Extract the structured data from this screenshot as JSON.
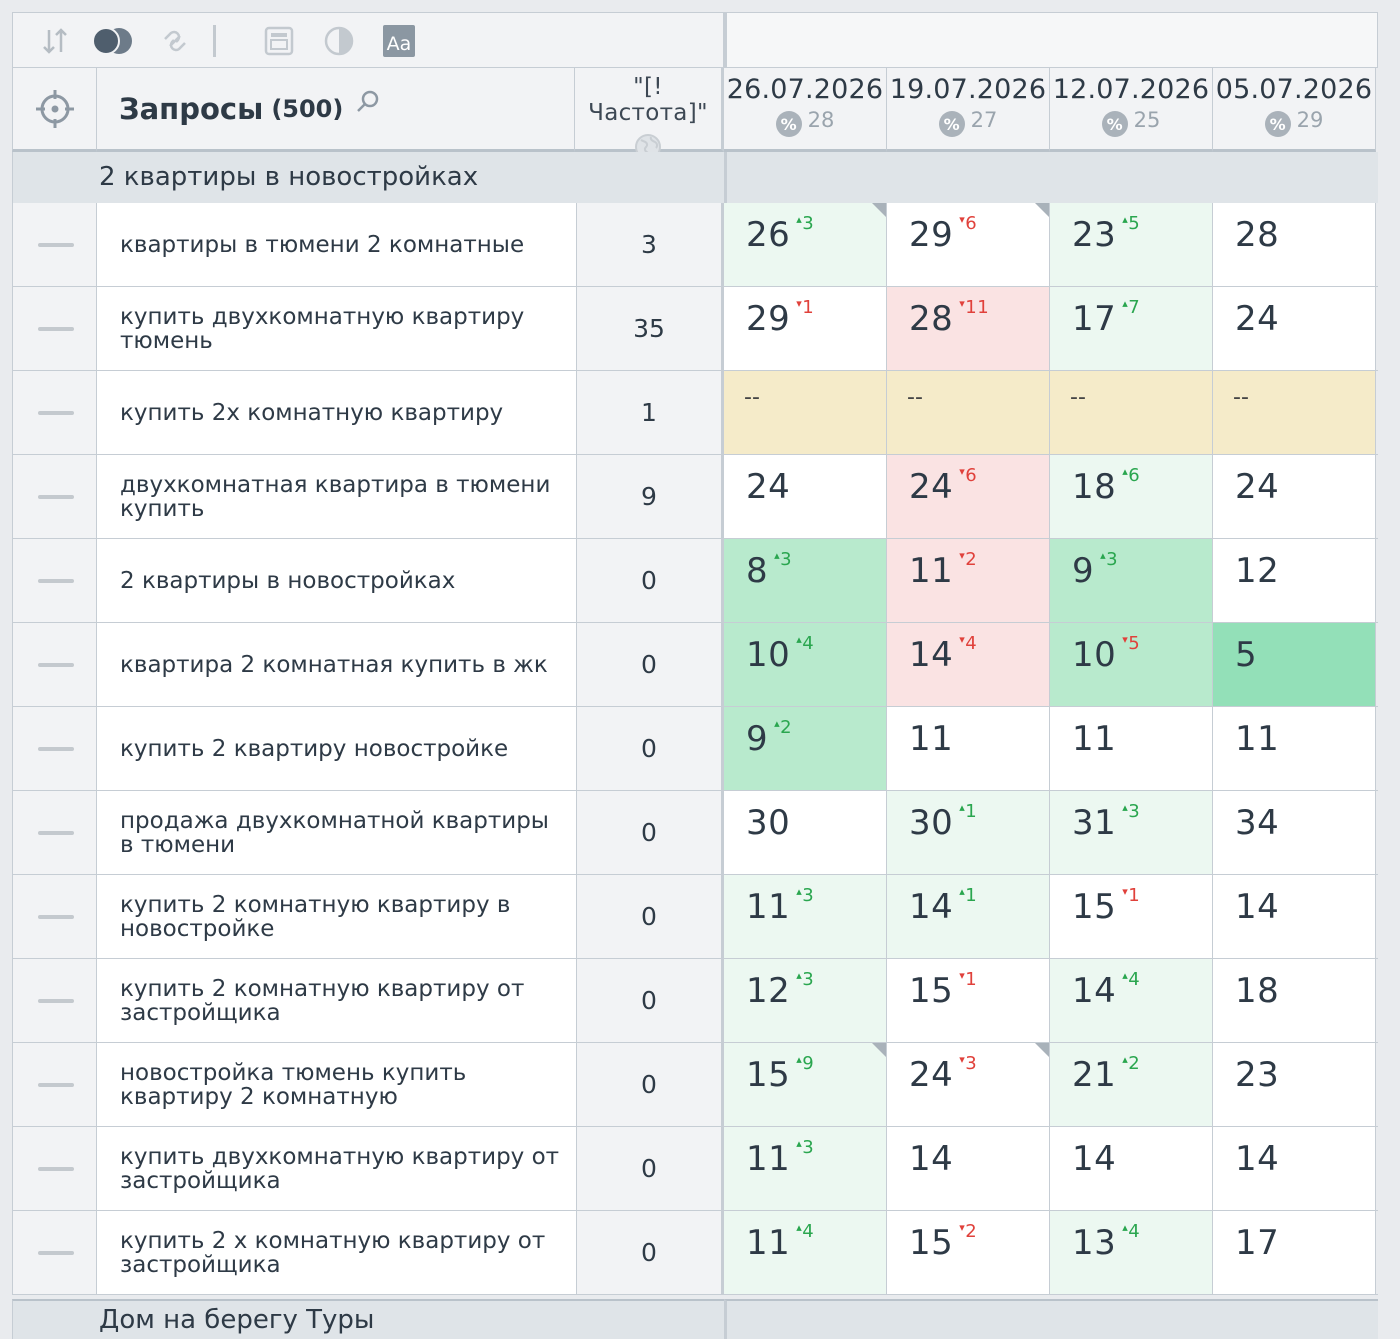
{
  "toolbar": {
    "icons": [
      "sort-icon",
      "toggle-icon",
      "link-icon",
      "separator",
      "calendar-icon",
      "contrast-icon",
      "font-icon"
    ],
    "font_icon_label": "Aa"
  },
  "header": {
    "query_title": "Запросы",
    "query_count": "(500)",
    "freq_label": "\"[!Частота]\"",
    "dates": [
      {
        "date": "26.07.2026",
        "score": "28"
      },
      {
        "date": "19.07.2026",
        "score": "27"
      },
      {
        "date": "12.07.2026",
        "score": "25"
      },
      {
        "date": "05.07.2026",
        "score": "29"
      }
    ],
    "pct_symbol": "%"
  },
  "group": {
    "title": "2 квартиры в новостройках"
  },
  "rows": [
    {
      "query": "квартиры в тюмени 2 комнатные",
      "freq": "3",
      "cells": [
        {
          "v": "26",
          "d": "3",
          "dir": "up",
          "bg": "lg",
          "corner": true
        },
        {
          "v": "29",
          "d": "6",
          "dir": "down",
          "bg": "white",
          "corner": true
        },
        {
          "v": "23",
          "d": "5",
          "dir": "up",
          "bg": "lg"
        },
        {
          "v": "28",
          "bg": "white"
        }
      ]
    },
    {
      "query": "купить двухкомнатную квартиру тюмень",
      "freq": "35",
      "cells": [
        {
          "v": "29",
          "d": "1",
          "dir": "down",
          "bg": "white"
        },
        {
          "v": "28",
          "d": "11",
          "dir": "down",
          "bg": "pk"
        },
        {
          "v": "17",
          "d": "7",
          "dir": "up",
          "bg": "lg"
        },
        {
          "v": "24",
          "bg": "white"
        }
      ]
    },
    {
      "query": "купить 2х комнатную квартиру",
      "freq": "1",
      "cells": [
        {
          "v": "--",
          "bg": "yl",
          "dash": true
        },
        {
          "v": "--",
          "bg": "yl",
          "dash": true
        },
        {
          "v": "--",
          "bg": "yl",
          "dash": true
        },
        {
          "v": "--",
          "bg": "yl",
          "dash": true
        }
      ]
    },
    {
      "query": "двухкомнатная квартира в тюмени купить",
      "freq": "9",
      "cells": [
        {
          "v": "24",
          "bg": "white"
        },
        {
          "v": "24",
          "d": "6",
          "dir": "down",
          "bg": "pk"
        },
        {
          "v": "18",
          "d": "6",
          "dir": "up",
          "bg": "lg"
        },
        {
          "v": "24",
          "bg": "white"
        }
      ]
    },
    {
      "query": "2 квартиры в новостройках",
      "freq": "0",
      "cells": [
        {
          "v": "8",
          "d": "3",
          "dir": "up",
          "bg": "mg"
        },
        {
          "v": "11",
          "d": "2",
          "dir": "down",
          "bg": "pk"
        },
        {
          "v": "9",
          "d": "3",
          "dir": "up",
          "bg": "mg"
        },
        {
          "v": "12",
          "bg": "white"
        }
      ]
    },
    {
      "query": "квартира 2 комнатная купить в жк",
      "freq": "0",
      "cells": [
        {
          "v": "10",
          "d": "4",
          "dir": "up",
          "bg": "mg"
        },
        {
          "v": "14",
          "d": "4",
          "dir": "down",
          "bg": "pk"
        },
        {
          "v": "10",
          "d": "5",
          "dir": "down",
          "bg": "mg"
        },
        {
          "v": "5",
          "bg": "dg"
        }
      ]
    },
    {
      "query": "купить 2 квартиру новостройке",
      "freq": "0",
      "cells": [
        {
          "v": "9",
          "d": "2",
          "dir": "up",
          "bg": "mg"
        },
        {
          "v": "11",
          "bg": "white"
        },
        {
          "v": "11",
          "bg": "white"
        },
        {
          "v": "11",
          "bg": "white"
        }
      ]
    },
    {
      "query": "продажа двухкомнатной квартиры в тюмени",
      "freq": "0",
      "cells": [
        {
          "v": "30",
          "bg": "white"
        },
        {
          "v": "30",
          "d": "1",
          "dir": "up",
          "bg": "lg"
        },
        {
          "v": "31",
          "d": "3",
          "dir": "up",
          "bg": "lg"
        },
        {
          "v": "34",
          "bg": "white"
        }
      ]
    },
    {
      "query": "купить 2 комнатную квартиру в новостройке",
      "freq": "0",
      "cells": [
        {
          "v": "11",
          "d": "3",
          "dir": "up",
          "bg": "lg"
        },
        {
          "v": "14",
          "d": "1",
          "dir": "up",
          "bg": "lg"
        },
        {
          "v": "15",
          "d": "1",
          "dir": "down",
          "bg": "white"
        },
        {
          "v": "14",
          "bg": "white"
        }
      ]
    },
    {
      "query": "купить 2 комнатную квартиру от застройщика",
      "freq": "0",
      "cells": [
        {
          "v": "12",
          "d": "3",
          "dir": "up",
          "bg": "lg"
        },
        {
          "v": "15",
          "d": "1",
          "dir": "down",
          "bg": "white"
        },
        {
          "v": "14",
          "d": "4",
          "dir": "up",
          "bg": "lg"
        },
        {
          "v": "18",
          "bg": "white"
        }
      ]
    },
    {
      "query": "новостройка тюмень купить квартиру 2 комнатную",
      "freq": "0",
      "cells": [
        {
          "v": "15",
          "d": "9",
          "dir": "up",
          "bg": "lg",
          "corner": true
        },
        {
          "v": "24",
          "d": "3",
          "dir": "down",
          "bg": "white",
          "corner": true
        },
        {
          "v": "21",
          "d": "2",
          "dir": "up",
          "bg": "lg"
        },
        {
          "v": "23",
          "bg": "white"
        }
      ]
    },
    {
      "query": "купить двухкомнатную квартиру от застройщика",
      "freq": "0",
      "cells": [
        {
          "v": "11",
          "d": "3",
          "dir": "up",
          "bg": "lg"
        },
        {
          "v": "14",
          "bg": "white"
        },
        {
          "v": "14",
          "bg": "white"
        },
        {
          "v": "14",
          "bg": "white"
        }
      ]
    },
    {
      "query": "купить 2 х комнатную квартиру от застройщика",
      "freq": "0",
      "cells": [
        {
          "v": "11",
          "d": "4",
          "dir": "up",
          "bg": "lg"
        },
        {
          "v": "15",
          "d": "2",
          "dir": "down",
          "bg": "white"
        },
        {
          "v": "13",
          "d": "4",
          "dir": "up",
          "bg": "lg"
        },
        {
          "v": "17",
          "bg": "white"
        }
      ]
    }
  ],
  "next_group": {
    "title": "Дом на берегу Туры"
  }
}
